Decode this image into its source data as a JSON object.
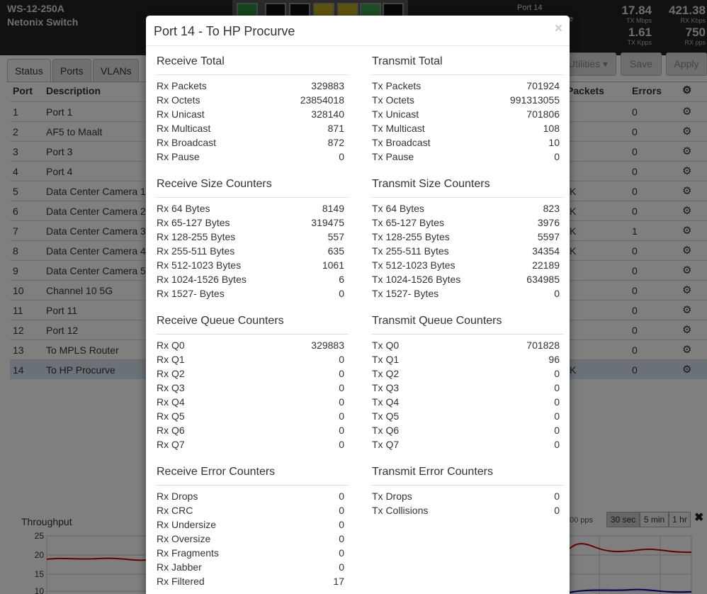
{
  "header": {
    "device_name": "WS-12-250A",
    "device_model": "Netonix Switch",
    "port_label": "Port 14",
    "port_label_suffix": "e",
    "stats": [
      {
        "value": "17.84",
        "label": "TX Mbps"
      },
      {
        "value": "421.38",
        "label": "RX Kbps"
      },
      {
        "value": "1.61",
        "label": "TX Kpps"
      },
      {
        "value": "750",
        "label": "RX pps"
      }
    ]
  },
  "tabs": [
    "Status",
    "Ports",
    "VLANs"
  ],
  "toolbar": {
    "utilities": "Utilities ▾",
    "save": "Save",
    "apply": "Apply"
  },
  "ports_table": {
    "headers": {
      "port": "Port",
      "description": "Description",
      "packets": "Packets",
      "errors": "Errors"
    },
    "rows": [
      {
        "port": "1",
        "desc": "Port 1",
        "k": "",
        "err": "0"
      },
      {
        "port": "2",
        "desc": "AF5 to Maalt",
        "k": "",
        "err": "0"
      },
      {
        "port": "3",
        "desc": "Port 3",
        "k": "",
        "err": "0"
      },
      {
        "port": "4",
        "desc": "Port 4",
        "k": "",
        "err": "0"
      },
      {
        "port": "5",
        "desc": "Data Center Camera 1",
        "k": "K",
        "err": "0"
      },
      {
        "port": "6",
        "desc": "Data Center Camera 2",
        "k": "K",
        "err": "0"
      },
      {
        "port": "7",
        "desc": "Data Center Camera 3",
        "k": "K",
        "err": "1"
      },
      {
        "port": "8",
        "desc": "Data Center Camera 4",
        "k": "K",
        "err": "0"
      },
      {
        "port": "9",
        "desc": "Data Center Camera 5",
        "k": "",
        "err": "0"
      },
      {
        "port": "10",
        "desc": "Channel 10 5G",
        "k": "",
        "err": "0"
      },
      {
        "port": "11",
        "desc": "Port 11",
        "k": "",
        "err": "0"
      },
      {
        "port": "12",
        "desc": "Port 12",
        "k": "",
        "err": "0"
      },
      {
        "port": "13",
        "desc": "To MPLS Router",
        "k": "",
        "err": "0"
      },
      {
        "port": "14",
        "desc": "To HP Procurve",
        "k": "K",
        "err": "0"
      }
    ]
  },
  "throughput": {
    "title": "Throughput",
    "pps_label": "00 pps",
    "ranges": [
      "30 sec",
      "5 min",
      "1 hr"
    ],
    "close": "✖",
    "yticks": [
      "25",
      "20",
      "15",
      "10"
    ]
  },
  "modal": {
    "title": "Port 14 - To HP Procurve",
    "close": "×",
    "left": [
      {
        "title": "Receive Total",
        "rows": [
          [
            "Rx Packets",
            "329883"
          ],
          [
            "Rx Octets",
            "23854018"
          ],
          [
            "Rx Unicast",
            "328140"
          ],
          [
            "Rx Multicast",
            "871"
          ],
          [
            "Rx Broadcast",
            "872"
          ],
          [
            "Rx Pause",
            "0"
          ]
        ]
      },
      {
        "title": "Receive Size Counters",
        "rows": [
          [
            "Rx 64 Bytes",
            "8149"
          ],
          [
            "Rx 65-127 Bytes",
            "319475"
          ],
          [
            "Rx 128-255 Bytes",
            "557"
          ],
          [
            "Rx 255-511 Bytes",
            "635"
          ],
          [
            "Rx 512-1023 Bytes",
            "1061"
          ],
          [
            "Rx 1024-1526 Bytes",
            "6"
          ],
          [
            "Rx 1527- Bytes",
            "0"
          ]
        ]
      },
      {
        "title": "Receive Queue Counters",
        "rows": [
          [
            "Rx Q0",
            "329883"
          ],
          [
            "Rx Q1",
            "0"
          ],
          [
            "Rx Q2",
            "0"
          ],
          [
            "Rx Q3",
            "0"
          ],
          [
            "Rx Q4",
            "0"
          ],
          [
            "Rx Q5",
            "0"
          ],
          [
            "Rx Q6",
            "0"
          ],
          [
            "Rx Q7",
            "0"
          ]
        ]
      },
      {
        "title": "Receive Error Counters",
        "rows": [
          [
            "Rx Drops",
            "0"
          ],
          [
            "Rx CRC",
            "0"
          ],
          [
            "Rx Undersize",
            "0"
          ],
          [
            "Rx Oversize",
            "0"
          ],
          [
            "Rx Fragments",
            "0"
          ],
          [
            "Rx Jabber",
            "0"
          ],
          [
            "Rx Filtered",
            "17"
          ]
        ]
      }
    ],
    "right": [
      {
        "title": "Transmit Total",
        "rows": [
          [
            "Tx Packets",
            "701924"
          ],
          [
            "Tx Octets",
            "991313055"
          ],
          [
            "Tx Unicast",
            "701806"
          ],
          [
            "Tx Multicast",
            "108"
          ],
          [
            "Tx Broadcast",
            "10"
          ],
          [
            "Tx Pause",
            "0"
          ]
        ]
      },
      {
        "title": "Transmit Size Counters",
        "rows": [
          [
            "Tx 64 Bytes",
            "823"
          ],
          [
            "Tx 65-127 Bytes",
            "3976"
          ],
          [
            "Tx 128-255 Bytes",
            "5597"
          ],
          [
            "Tx 255-511 Bytes",
            "34354"
          ],
          [
            "Tx 512-1023 Bytes",
            "22189"
          ],
          [
            "Tx 1024-1526 Bytes",
            "634985"
          ],
          [
            "Tx 1527- Bytes",
            "0"
          ]
        ]
      },
      {
        "title": "Transmit Queue Counters",
        "rows": [
          [
            "Tx Q0",
            "701828"
          ],
          [
            "Tx Q1",
            "96"
          ],
          [
            "Tx Q2",
            "0"
          ],
          [
            "Tx Q3",
            "0"
          ],
          [
            "Tx Q4",
            "0"
          ],
          [
            "Tx Q5",
            "0"
          ],
          [
            "Tx Q6",
            "0"
          ],
          [
            "Tx Q7",
            "0"
          ]
        ]
      },
      {
        "title": "Transmit Error Counters",
        "rows": [
          [
            "Tx Drops",
            "0"
          ],
          [
            "Tx Collisions",
            "0"
          ]
        ]
      }
    ]
  }
}
